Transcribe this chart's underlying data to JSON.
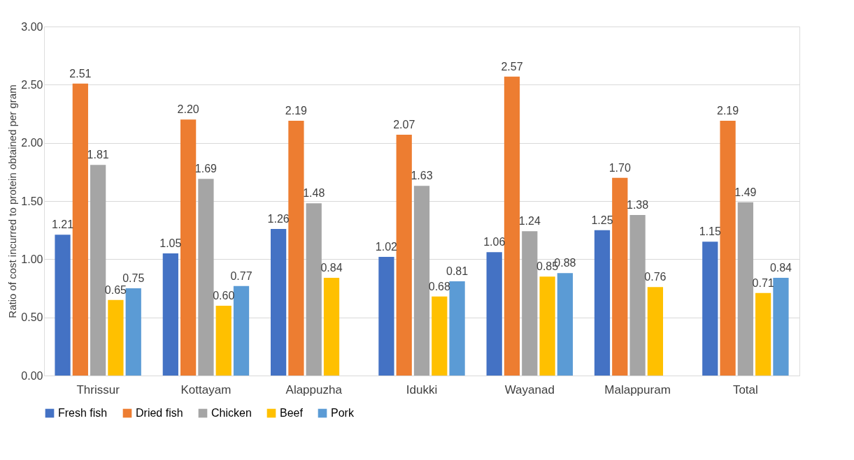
{
  "chart_data": {
    "type": "bar",
    "ylabel": "Ratio of cost incurred to protein obtained per gram",
    "categories": [
      "Thrissur",
      "Kottayam",
      "Alappuzha",
      "Idukki",
      "Wayanad",
      "Malappuram",
      "Total"
    ],
    "series": [
      {
        "name": "Fresh fish",
        "color": "#4472c4",
        "values": [
          1.21,
          1.05,
          1.26,
          1.02,
          1.06,
          1.25,
          1.15
        ],
        "value_labels": [
          "1.21",
          "1.05",
          "1.26",
          "1.02",
          "1.06",
          "1.25",
          "1.15"
        ]
      },
      {
        "name": "Dried fish",
        "color": "#ed7d31",
        "values": [
          2.51,
          2.2,
          2.19,
          2.07,
          2.57,
          1.7,
          2.19
        ],
        "value_labels": [
          "2.51",
          "2.20",
          "2.19",
          "2.07",
          "2.57",
          "1.70",
          "2.19"
        ]
      },
      {
        "name": "Chicken",
        "color": "#a5a5a5",
        "values": [
          1.81,
          1.69,
          1.48,
          1.63,
          1.24,
          1.38,
          1.49
        ],
        "value_labels": [
          "1.81",
          "1.69",
          "1.48",
          "1.63",
          "1.24",
          "1.38",
          "1.49"
        ]
      },
      {
        "name": "Beef",
        "color": "#ffc000",
        "values": [
          0.65,
          0.6,
          0.84,
          0.68,
          0.85,
          0.76,
          0.71
        ],
        "value_labels": [
          "0.65",
          "0.60",
          "0.84",
          "0.68",
          "0.85",
          "0.76",
          "0.71"
        ]
      },
      {
        "name": "Pork",
        "color": "#5b9bd5",
        "values": [
          0.75,
          0.77,
          null,
          0.81,
          0.88,
          null,
          0.84
        ],
        "value_labels": [
          "0.75",
          "0.77",
          null,
          "0.81",
          "0.88",
          null,
          "0.84"
        ]
      }
    ],
    "ylim": [
      0,
      3
    ],
    "yticks": [
      {
        "value": 0,
        "label": "0.00"
      },
      {
        "value": 0.5,
        "label": "0.50"
      },
      {
        "value": 1,
        "label": "1.00"
      },
      {
        "value": 1.5,
        "label": "1.50"
      },
      {
        "value": 2,
        "label": "2.00"
      },
      {
        "value": 2.5,
        "label": "2.50"
      },
      {
        "value": 3,
        "label": "3.00"
      }
    ],
    "grid": "y",
    "legend": "bottom"
  }
}
